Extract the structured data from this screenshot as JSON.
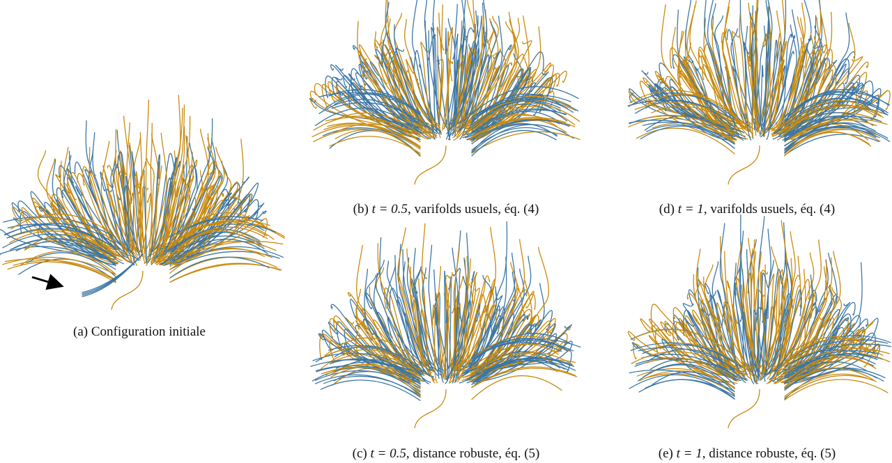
{
  "figure": {
    "panels": [
      {
        "label": "(a)",
        "text": "Configuration initiale"
      },
      {
        "label": "(b)",
        "math": "t = 0.5",
        "text": ", varifolds usuels, éq. (4)"
      },
      {
        "label": "(c)",
        "math": "t = 0.5",
        "text": ", distance robuste, éq. (5)"
      },
      {
        "label": "(d)",
        "math": "t = 1",
        "text": ", varifolds usuels, éq. (4)"
      },
      {
        "label": "(e)",
        "math": "t = 1",
        "text": ", distance robuste, éq. (5)"
      }
    ]
  }
}
